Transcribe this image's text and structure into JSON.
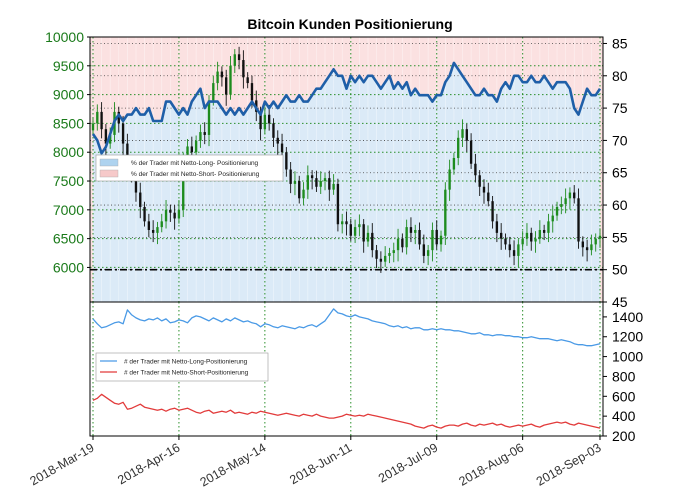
{
  "chart_data": {
    "title": "Bitcoin Kunden Positionierung",
    "x_ticks": [
      "2018-Mar-19",
      "2018-Apr-16",
      "2018-May-14",
      "2018-Jun-11",
      "2018-Jul-09",
      "2018-Aug-06",
      "2018-Sep-03"
    ],
    "panels": [
      {
        "type": "candlestick_line",
        "ylim_left": [
          5400,
          10000
        ],
        "yticks_left": [
          6000,
          6500,
          7000,
          7500,
          8000,
          8500,
          9000,
          9500,
          10000
        ],
        "ylim_right": [
          45,
          86
        ],
        "yticks_right": [
          45,
          50,
          55,
          60,
          65,
          70,
          75,
          80,
          85
        ],
        "reference_line": 50,
        "legend": {
          "placement": "middle-left",
          "entries": [
            {
              "label": "% der Trader mit Netto-Long- Positionierung",
              "color": "#aed3ef"
            },
            {
              "label": "% der Trader mit Netto-Short- Positionierung",
              "color": "#f6c9c9"
            }
          ]
        },
        "price_close": [
          8500,
          8700,
          8400,
          8150,
          8300,
          8700,
          8500,
          8150,
          7800,
          7600,
          7300,
          7050,
          6800,
          6650,
          6600,
          6700,
          6800,
          7000,
          6950,
          6850,
          7000,
          7900,
          8100,
          8000,
          8200,
          8350,
          8300,
          8900,
          9200,
          9400,
          9300,
          9000,
          9500,
          9700,
          9600,
          9300,
          9200,
          8900,
          8700,
          8400,
          8650,
          8500,
          8250,
          8150,
          8000,
          7700,
          7450,
          7500,
          7200,
          7350,
          7600,
          7550,
          7400,
          7500,
          7550,
          7350,
          7450,
          6750,
          6800,
          6750,
          6550,
          6700,
          6750,
          6450,
          6600,
          6300,
          6150,
          6100,
          6200,
          6250,
          6300,
          6500,
          6350,
          6700,
          6600,
          6650,
          6400,
          6200,
          6300,
          6650,
          6400,
          6550,
          7350,
          7700,
          7900,
          8250,
          8400,
          8200,
          7800,
          7600,
          7400,
          7300,
          7150,
          6800,
          6600,
          6500,
          6400,
          6300,
          6200,
          6400,
          6500,
          6600,
          6450,
          6500,
          6650,
          6600,
          6800,
          6900,
          7050,
          7100,
          7200,
          7300,
          7200,
          6450,
          6350,
          6300,
          6400,
          6500,
          6550
        ],
        "long_pct": [
          71,
          70,
          68,
          69,
          71,
          73,
          74,
          73,
          74,
          74,
          75,
          74,
          74,
          75,
          73,
          73,
          73,
          76,
          76,
          75,
          74,
          75,
          74,
          76,
          77,
          78,
          75,
          76,
          76,
          76,
          75,
          74,
          75,
          74,
          75,
          74,
          75,
          76,
          75,
          74,
          76,
          75,
          76,
          75,
          76,
          77,
          76,
          76,
          77,
          76,
          76,
          77,
          78,
          78,
          79,
          80,
          81,
          80,
          80,
          78,
          80,
          79,
          80,
          79,
          80,
          80,
          79,
          78,
          79,
          80,
          78,
          79,
          78,
          79,
          77,
          78,
          77,
          77,
          77,
          76,
          77,
          77,
          79,
          80,
          82,
          81,
          80,
          79,
          78,
          77,
          77,
          78,
          77,
          77,
          76,
          78,
          79,
          78,
          80,
          80,
          79,
          79,
          80,
          79,
          79,
          80,
          79,
          78,
          79,
          79,
          79,
          78,
          75,
          74,
          76,
          78,
          77,
          77,
          78
        ]
      },
      {
        "type": "line",
        "ylim": [
          200,
          1550
        ],
        "yticks": [
          200,
          400,
          600,
          800,
          1000,
          1200,
          1400
        ],
        "legend": {
          "placement": "middle-left",
          "entries": [
            {
              "label": "# der Trader mit Netto-Long-Positionierung",
              "color": "#4a9ae6"
            },
            {
              "label": "# der Trader mit Netto-Short-Positionierung",
              "color": "#e23b3b"
            }
          ]
        },
        "series": [
          {
            "name": "# der Trader mit Netto-Long-Positionierung",
            "color": "#4a9ae6",
            "values": [
              1380,
              1330,
              1290,
              1300,
              1320,
              1340,
              1350,
              1330,
              1470,
              1420,
              1390,
              1370,
              1360,
              1380,
              1370,
              1390,
              1360,
              1380,
              1340,
              1350,
              1370,
              1360,
              1340,
              1390,
              1410,
              1400,
              1380,
              1360,
              1390,
              1370,
              1350,
              1380,
              1360,
              1390,
              1370,
              1350,
              1360,
              1340,
              1330,
              1300,
              1330,
              1320,
              1300,
              1290,
              1310,
              1300,
              1290,
              1280,
              1300,
              1290,
              1310,
              1320,
              1300,
              1330,
              1360,
              1420,
              1480,
              1440,
              1430,
              1410,
              1400,
              1420,
              1400,
              1390,
              1380,
              1360,
              1350,
              1340,
              1330,
              1310,
              1300,
              1310,
              1290,
              1300,
              1280,
              1290,
              1290,
              1270,
              1270,
              1280,
              1270,
              1280,
              1270,
              1270,
              1260,
              1260,
              1250,
              1240,
              1230,
              1230,
              1240,
              1220,
              1220,
              1210,
              1220,
              1220,
              1210,
              1210,
              1200,
              1200,
              1190,
              1190,
              1200,
              1190,
              1180,
              1180,
              1180,
              1170,
              1160,
              1170,
              1160,
              1150,
              1130,
              1120,
              1120,
              1110,
              1110,
              1120,
              1130
            ]
          },
          {
            "name": "# der Trader mit Netto-Short-Positionierung",
            "color": "#e23b3b",
            "values": [
              560,
              580,
              620,
              590,
              560,
              530,
              520,
              540,
              470,
              480,
              500,
              520,
              490,
              480,
              470,
              460,
              470,
              450,
              470,
              480,
              460,
              470,
              480,
              460,
              440,
              430,
              450,
              460,
              430,
              440,
              450,
              440,
              460,
              430,
              440,
              430,
              420,
              440,
              430,
              450,
              440,
              430,
              420,
              410,
              420,
              430,
              420,
              410,
              400,
              420,
              410,
              400,
              420,
              400,
              390,
              380,
              380,
              390,
              400,
              420,
              410,
              400,
              410,
              400,
              420,
              410,
              400,
              390,
              380,
              370,
              360,
              350,
              340,
              330,
              320,
              300,
              290,
              280,
              300,
              310,
              290,
              280,
              300,
              310,
              310,
              300,
              320,
              330,
              310,
              300,
              320,
              310,
              320,
              330,
              310,
              320,
              300,
              290,
              300,
              310,
              300,
              310,
              320,
              300,
              290,
              310,
              320,
              330,
              340,
              330,
              340,
              320,
              310,
              330,
              320,
              310,
              300,
              290,
              280
            ]
          }
        ]
      }
    ]
  }
}
